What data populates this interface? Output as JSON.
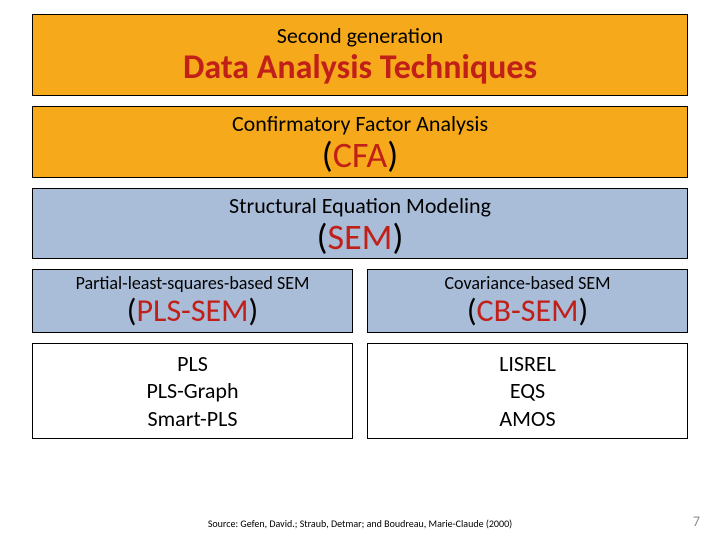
{
  "colors": {
    "orange": "#f6a91a",
    "blue": "#a9bcd8",
    "accent_red": "#c12019",
    "border": "#000000",
    "background": "#ffffff"
  },
  "title": {
    "supertitle": "Second generation",
    "main": "Data Analysis Techniques"
  },
  "cfa": {
    "label": "Confirmatory Factor Analysis",
    "paren_open": "(",
    "abbr": "CFA",
    "paren_close": ")"
  },
  "sem": {
    "label": "Structural Equation Modeling",
    "paren_open": "(",
    "abbr": "SEM",
    "paren_close": ")"
  },
  "pls": {
    "label": "Partial-least-squares-based SEM",
    "paren_open": "(",
    "abbr": "PLS-SEM",
    "paren_close": ")",
    "tools": {
      "t1": "PLS",
      "t2": "PLS-Graph",
      "t3": "Smart-PLS"
    }
  },
  "cb": {
    "label": "Covariance-based SEM",
    "paren_open": "(",
    "abbr": "CB-SEM",
    "paren_close": ")",
    "tools": {
      "t1": "LISREL",
      "t2": "EQS",
      "t3": "AMOS"
    }
  },
  "source": "Source: Gefen, David.; Straub, Detmar; and Boudreau, Marie-Claude (2000)",
  "page": "7"
}
